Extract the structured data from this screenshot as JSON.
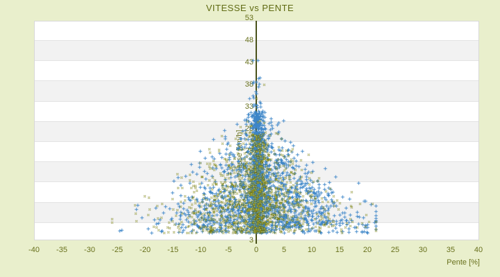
{
  "title": "VITESSE vs PENTE",
  "colors": {
    "page_background": "#e9efcc",
    "plot_background": "#ffffff",
    "band_gray": "#f2f2f2",
    "grid_line": "#e3e3e3",
    "plot_border": "#d8d8d8",
    "axis_line": "#49511a",
    "text_olive": "#68701c",
    "title_olive": "#5f6a12",
    "series_blue": "#3c85c8",
    "series_olive": "#70761d",
    "series_olive_center": "#c9d24f"
  },
  "chart_data": {
    "type": "scatter",
    "title": "VITESSE vs PENTE",
    "xlabel": "Pente [%]",
    "ylabel": "Vitesse [km/h]",
    "xlim": [
      -40,
      40
    ],
    "ylim": [
      3,
      53
    ],
    "x_ticks": [
      -40,
      -35,
      -30,
      -25,
      -20,
      -15,
      -10,
      -5,
      0,
      5,
      10,
      15,
      20,
      25,
      30,
      35,
      40
    ],
    "y_ticks": [
      3,
      8,
      13,
      18,
      23,
      28,
      33,
      38,
      43,
      48,
      53
    ],
    "grid": "alternating-horizontal-bands",
    "legend": "none",
    "y_axis_drawn_at_x": 0,
    "description": "Dense triangular point cloud centered on Pente=0; speed values concentrated between 5 and 30 km/h, horizontal spread widening toward low speeds; a very dense vertical column of blue points hugs Pente=0 up to ~33 km/h; sparse outliers reach Pente -27 to +21 and Vitesse up to ~48.",
    "series": [
      {
        "name": "vitesse-vs-pente-blue",
        "marker": "plus",
        "color": "#3c85c8",
        "count": 2400,
        "x_range_observed": [
          -27.5,
          21.5
        ],
        "y_range_observed": [
          4.5,
          48.5
        ],
        "distribution": {
          "seed": 1357911,
          "column_fraction": 0.38,
          "column": {
            "x_mean": 0.25,
            "x_sd": 0.55,
            "y_min": 4.8,
            "y_span": 27,
            "y_pow": 1.35
          },
          "cloud": {
            "y_min": 4.6,
            "y_sd": 11,
            "y_max_dev": 44,
            "x_shift": 0.9,
            "x_sd_base": 0.6,
            "x_sd_scale": 9.0,
            "x_sd_pow": 1.15,
            "taper_ref": 34,
            "taper_range": 29
          },
          "x_clip": [
            -27.5,
            21.5
          ]
        }
      },
      {
        "name": "vitesse-vs-pente-olive",
        "marker": "x",
        "color": "#70761d",
        "center_color": "#c9d24f",
        "count": 1500,
        "x_range_observed": [
          -26.0,
          21.5
        ],
        "y_range_observed": [
          4.5,
          40.5
        ],
        "distribution": {
          "seed": 246802,
          "column_fraction": 0.3,
          "column": {
            "x_mean": 0.3,
            "x_sd": 0.9,
            "y_min": 4.8,
            "y_span": 22,
            "y_pow": 1.3
          },
          "cloud": {
            "y_min": 4.6,
            "y_sd": 9.5,
            "y_max_dev": 36,
            "x_shift": -0.6,
            "x_sd_base": 0.8,
            "x_sd_scale": 8.5,
            "x_sd_pow": 1.1,
            "taper_ref": 34,
            "taper_range": 29
          },
          "x_clip": [
            -26.0,
            21.5
          ]
        }
      }
    ]
  }
}
